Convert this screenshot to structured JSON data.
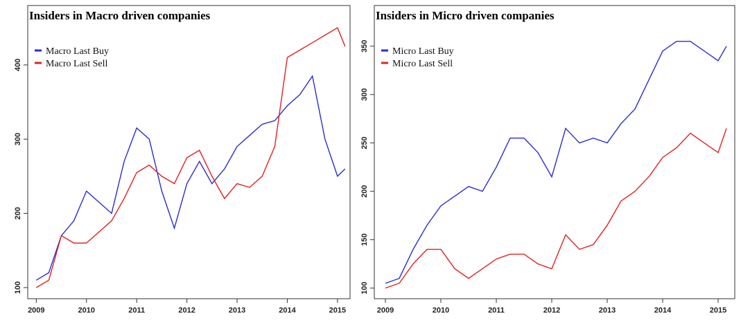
{
  "chart_data": [
    {
      "type": "line",
      "title": "Insiders in Macro driven companies",
      "x": [
        2009,
        2009.25,
        2009.5,
        2009.75,
        2010,
        2010.25,
        2010.5,
        2010.75,
        2011,
        2011.25,
        2011.5,
        2011.75,
        2012,
        2012.25,
        2012.5,
        2012.75,
        2013,
        2013.25,
        2013.5,
        2013.75,
        2014,
        2014.25,
        2014.5,
        2014.75,
        2015,
        2015.15
      ],
      "series": [
        {
          "name": "Macro Last Buy",
          "color": "#2b2bd0",
          "values": [
            110,
            120,
            170,
            190,
            230,
            215,
            200,
            270,
            315,
            300,
            230,
            180,
            240,
            270,
            240,
            260,
            290,
            305,
            320,
            325,
            345,
            360,
            385,
            300,
            250,
            260
          ]
        },
        {
          "name": "Macro Last Sell",
          "color": "#e02020",
          "values": [
            100,
            110,
            170,
            160,
            160,
            175,
            190,
            220,
            255,
            265,
            250,
            240,
            275,
            285,
            250,
            220,
            240,
            235,
            250,
            290,
            410,
            420,
            430,
            440,
            450,
            425
          ]
        }
      ],
      "xlim": [
        2008.83,
        2015.25
      ],
      "xticks": [
        2009,
        2010,
        2011,
        2012,
        2013,
        2014,
        2015
      ],
      "ylim": [
        85,
        480
      ],
      "yticks": [
        100,
        200,
        300,
        400
      ],
      "legend": "top-left"
    },
    {
      "type": "line",
      "title": "Insiders in Micro driven companies",
      "x": [
        2009,
        2009.25,
        2009.5,
        2009.75,
        2010,
        2010.25,
        2010.5,
        2010.75,
        2011,
        2011.25,
        2011.5,
        2011.75,
        2012,
        2012.25,
        2012.5,
        2012.75,
        2013,
        2013.25,
        2013.5,
        2013.75,
        2014,
        2014.25,
        2014.5,
        2014.75,
        2015,
        2015.15
      ],
      "series": [
        {
          "name": "Micro Last Buy",
          "color": "#2b2bd0",
          "values": [
            105,
            110,
            140,
            165,
            185,
            195,
            205,
            200,
            225,
            255,
            255,
            240,
            215,
            265,
            250,
            255,
            250,
            270,
            285,
            315,
            345,
            355,
            355,
            345,
            335,
            350
          ]
        },
        {
          "name": "Micro Last Sell",
          "color": "#e02020",
          "values": [
            100,
            105,
            125,
            140,
            140,
            120,
            110,
            120,
            130,
            135,
            135,
            125,
            120,
            155,
            140,
            145,
            165,
            190,
            200,
            215,
            235,
            245,
            260,
            250,
            240,
            265
          ]
        }
      ],
      "xlim": [
        2008.8,
        2015.3
      ],
      "xticks": [
        2009,
        2010,
        2011,
        2012,
        2013,
        2014,
        2015
      ],
      "ylim": [
        89,
        392
      ],
      "yticks": [
        100,
        150,
        200,
        250,
        300,
        350
      ],
      "legend": "top-left"
    }
  ]
}
